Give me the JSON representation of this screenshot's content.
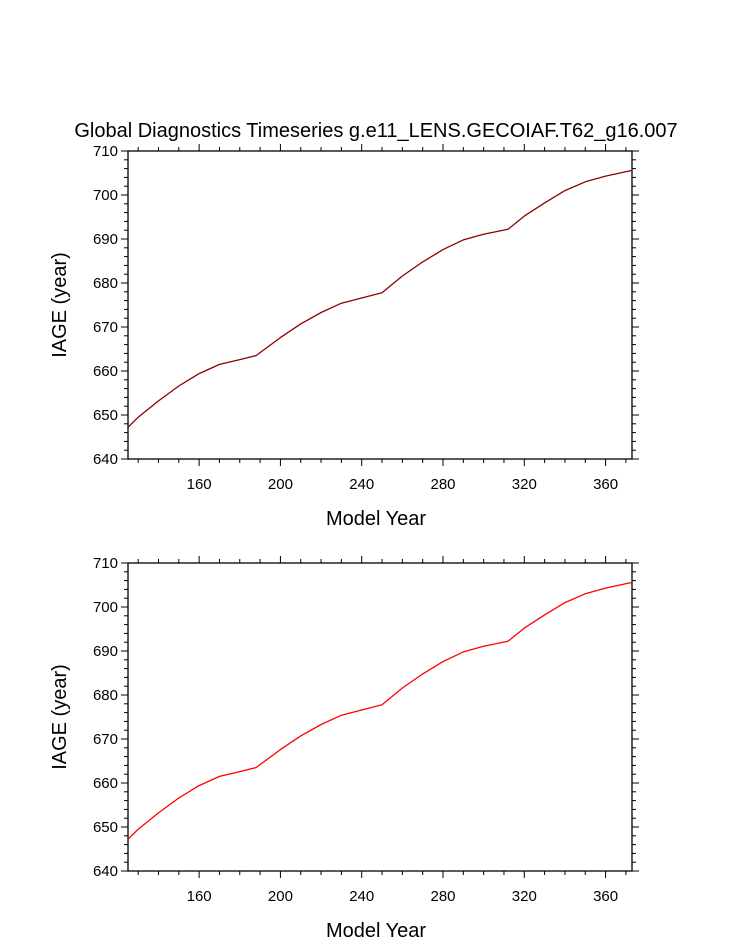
{
  "chart_data": [
    {
      "type": "line",
      "title": "Global Diagnostics Timeseries g.e11_LENS.GECOIAF.T62_g16.007",
      "xlabel": "Model Year",
      "ylabel": "IAGE (year)",
      "xlim": [
        125,
        373
      ],
      "ylim": [
        640,
        710
      ],
      "xticks": [
        160,
        200,
        240,
        280,
        320,
        360
      ],
      "yticks": [
        640,
        650,
        660,
        670,
        680,
        690,
        700,
        710
      ],
      "series": [
        {
          "name": "IAGE",
          "color": "#8b0000",
          "x": [
            125,
            130,
            140,
            150,
            160,
            170,
            180,
            188,
            200,
            210,
            220,
            230,
            240,
            250,
            260,
            270,
            280,
            290,
            300,
            312,
            320,
            330,
            340,
            350,
            360,
            373
          ],
          "y": [
            647.2,
            649.5,
            653.2,
            656.6,
            659.4,
            661.5,
            662.6,
            663.5,
            667.6,
            670.7,
            673.3,
            675.4,
            676.6,
            677.8,
            681.6,
            684.8,
            687.6,
            689.8,
            691.1,
            692.2,
            695.2,
            698.2,
            701.0,
            703.0,
            704.3,
            705.6
          ]
        }
      ]
    },
    {
      "type": "line",
      "title": "",
      "xlabel": "Model Year",
      "ylabel": "IAGE (year)",
      "xlim": [
        125,
        373
      ],
      "ylim": [
        640,
        710
      ],
      "xticks": [
        160,
        200,
        240,
        280,
        320,
        360
      ],
      "yticks": [
        640,
        650,
        660,
        670,
        680,
        690,
        700,
        710
      ],
      "series": [
        {
          "name": "IAGE",
          "color": "#ff0000",
          "x": [
            125,
            130,
            140,
            150,
            160,
            170,
            180,
            188,
            200,
            210,
            220,
            230,
            240,
            250,
            260,
            270,
            280,
            290,
            300,
            312,
            320,
            330,
            340,
            350,
            360,
            373
          ],
          "y": [
            647.2,
            649.5,
            653.2,
            656.6,
            659.4,
            661.5,
            662.6,
            663.5,
            667.6,
            670.7,
            673.3,
            675.4,
            676.6,
            677.8,
            681.6,
            684.8,
            687.6,
            689.8,
            691.1,
            692.2,
            695.2,
            698.2,
            701.0,
            703.0,
            704.3,
            705.6
          ]
        }
      ]
    }
  ]
}
